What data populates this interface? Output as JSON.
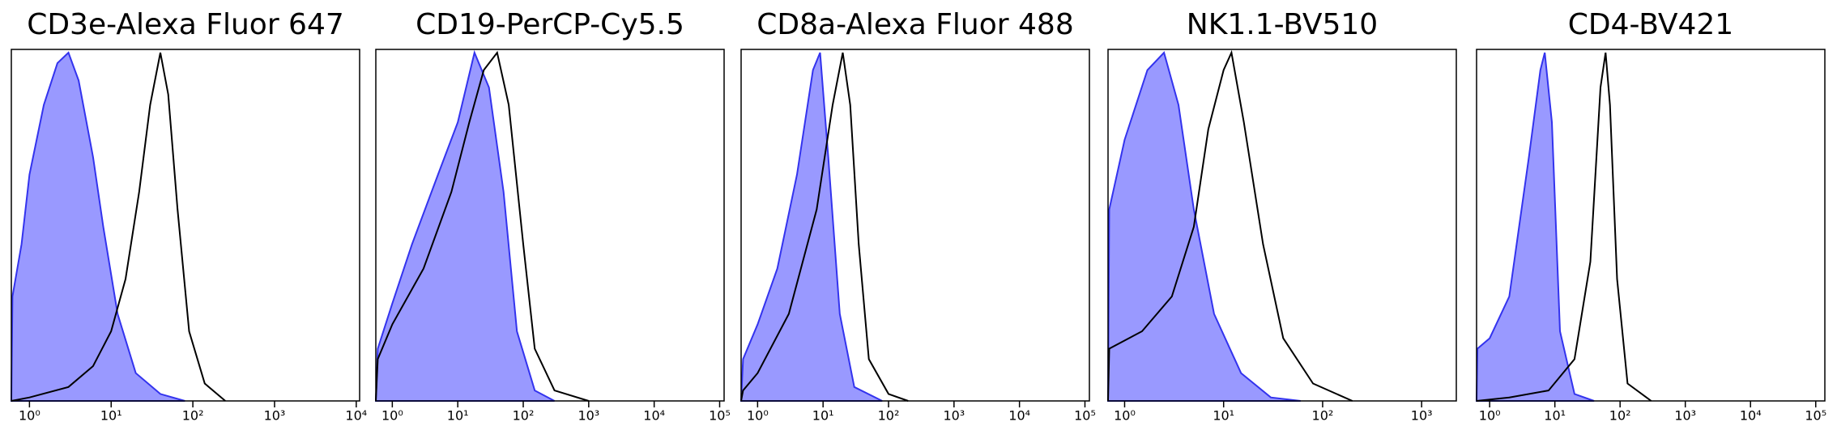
{
  "chart_data": [
    {
      "type": "line",
      "title": "CD3e-Alexa Fluor 647",
      "log_x": true,
      "xlim": [
        0.6,
        11000
      ],
      "ylim": [
        0,
        100
      ],
      "xticks": [
        {
          "value": 1,
          "label": "10⁰"
        },
        {
          "value": 10,
          "label": "10¹"
        },
        {
          "value": 100,
          "label": "10²"
        },
        {
          "value": 1000,
          "label": "10³"
        },
        {
          "value": 10000,
          "label": "10⁴"
        }
      ],
      "series": [
        {
          "color": "#3333ee",
          "fill": "#9999ff",
          "x": [
            0.6,
            0.62,
            0.8,
            1,
            1.5,
            2.2,
            3,
            4,
            6,
            8,
            12,
            20,
            40,
            80
          ],
          "values": [
            0,
            30,
            45,
            65,
            85,
            97,
            100,
            92,
            70,
            50,
            25,
            8,
            2,
            0
          ]
        },
        {
          "color": "#000000",
          "x": [
            0.6,
            1,
            3,
            6,
            10,
            15,
            22,
            30,
            40,
            50,
            65,
            90,
            140,
            250
          ],
          "values": [
            0,
            1,
            4,
            10,
            20,
            35,
            60,
            85,
            100,
            88,
            55,
            20,
            5,
            0
          ]
        }
      ]
    },
    {
      "type": "line",
      "title": "CD19-PerCP-Cy5.5",
      "log_x": true,
      "xlim": [
        0.56,
        117000
      ],
      "ylim": [
        0,
        100
      ],
      "xticks": [
        {
          "value": 1,
          "label": "10⁰"
        },
        {
          "value": 10,
          "label": "10¹"
        },
        {
          "value": 100,
          "label": "10²"
        },
        {
          "value": 1000,
          "label": "10³"
        },
        {
          "value": 10000,
          "label": "10⁴"
        },
        {
          "value": 100000,
          "label": "10⁵"
        }
      ],
      "series": [
        {
          "color": "#3333ee",
          "fill": "#9999ff",
          "x": [
            0.56,
            0.6,
            1,
            2,
            5,
            10,
            18,
            30,
            50,
            80,
            150,
            300
          ],
          "values": [
            0,
            15,
            28,
            45,
            65,
            80,
            100,
            90,
            60,
            20,
            3,
            0
          ]
        },
        {
          "color": "#000000",
          "x": [
            0.56,
            0.6,
            1,
            3,
            8,
            15,
            25,
            40,
            60,
            100,
            150,
            300,
            1000
          ],
          "values": [
            0,
            12,
            22,
            38,
            60,
            80,
            95,
            100,
            85,
            45,
            15,
            3,
            0
          ]
        }
      ]
    },
    {
      "type": "line",
      "title": "CD8a-Alexa Fluor 488",
      "log_x": true,
      "xlim": [
        0.56,
        117000
      ],
      "ylim": [
        0,
        100
      ],
      "xticks": [
        {
          "value": 1,
          "label": "10⁰"
        },
        {
          "value": 10,
          "label": "10¹"
        },
        {
          "value": 100,
          "label": "10²"
        },
        {
          "value": 1000,
          "label": "10³"
        },
        {
          "value": 10000,
          "label": "10⁴"
        },
        {
          "value": 100000,
          "label": "10⁵"
        }
      ],
      "series": [
        {
          "color": "#3333ee",
          "fill": "#9999ff",
          "x": [
            0.56,
            0.6,
            1,
            2,
            4,
            7,
            9,
            12,
            18,
            30,
            80
          ],
          "values": [
            0,
            12,
            22,
            38,
            65,
            95,
            100,
            70,
            25,
            4,
            0
          ]
        },
        {
          "color": "#000000",
          "x": [
            0.56,
            0.6,
            1,
            3,
            8,
            14,
            20,
            26,
            35,
            50,
            100,
            200
          ],
          "values": [
            0,
            3,
            8,
            25,
            55,
            85,
            100,
            85,
            45,
            12,
            2,
            0
          ]
        }
      ]
    },
    {
      "type": "line",
      "title": "NK1.1-BV510",
      "log_x": true,
      "xlim": [
        0.68,
        2240
      ],
      "ylim": [
        0,
        100
      ],
      "xticks": [
        {
          "value": 1,
          "label": "10⁰"
        },
        {
          "value": 10,
          "label": "10¹"
        },
        {
          "value": 100,
          "label": "10²"
        },
        {
          "value": 1000,
          "label": "10³"
        }
      ],
      "series": [
        {
          "color": "#3333ee",
          "fill": "#9999ff",
          "x": [
            0.68,
            0.7,
            1,
            1.7,
            2.5,
            3.5,
            5,
            8,
            15,
            30,
            60
          ],
          "values": [
            0,
            55,
            75,
            95,
            100,
            85,
            55,
            25,
            8,
            1,
            0
          ]
        },
        {
          "color": "#000000",
          "x": [
            0.68,
            0.7,
            1.5,
            3,
            5,
            7,
            10,
            12,
            16,
            25,
            40,
            80,
            200
          ],
          "values": [
            0,
            15,
            20,
            30,
            50,
            78,
            95,
            100,
            80,
            45,
            18,
            5,
            0
          ]
        }
      ]
    },
    {
      "type": "line",
      "title": "CD4-BV421",
      "log_x": true,
      "xlim": [
        0.63,
        138000
      ],
      "ylim": [
        0,
        100
      ],
      "xticks": [
        {
          "value": 1,
          "label": "10⁰"
        },
        {
          "value": 10,
          "label": "10¹"
        },
        {
          "value": 100,
          "label": "10²"
        },
        {
          "value": 1000,
          "label": "10³"
        },
        {
          "value": 10000,
          "label": "10⁴"
        },
        {
          "value": 100000,
          "label": "10⁵"
        }
      ],
      "series": [
        {
          "color": "#3333ee",
          "fill": "#9999ff",
          "x": [
            0.63,
            0.65,
            1,
            2,
            4,
            6,
            7,
            9,
            12,
            20,
            40
          ],
          "values": [
            0,
            15,
            18,
            30,
            70,
            95,
            100,
            80,
            20,
            2,
            0
          ]
        },
        {
          "color": "#000000",
          "x": [
            0.63,
            2,
            8,
            20,
            35,
            50,
            60,
            70,
            90,
            130,
            300
          ],
          "values": [
            0,
            1,
            3,
            12,
            40,
            90,
            100,
            85,
            35,
            5,
            0
          ]
        }
      ]
    }
  ]
}
